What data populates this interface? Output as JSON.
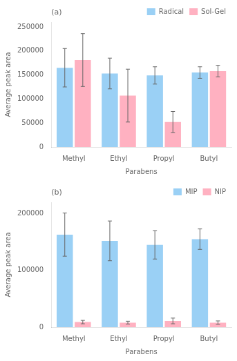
{
  "chart_data": [
    {
      "type": "bar",
      "annotation": "(a)",
      "categories": [
        "Methyl",
        "Ethyl",
        "Propyl",
        "Butyl"
      ],
      "series": [
        {
          "name": "Radical",
          "values": [
            165000,
            153000,
            149000,
            155000
          ],
          "errors": [
            40000,
            32000,
            18000,
            12000
          ]
        },
        {
          "name": "Sol-Gel",
          "values": [
            181000,
            107000,
            52000,
            158000
          ],
          "errors": [
            55000,
            55000,
            22000,
            12000
          ]
        }
      ],
      "xlabel": "Parabens",
      "ylabel": "Average peak area",
      "ylim": [
        0,
        260000
      ],
      "yticks": [
        0,
        50000,
        100000,
        150000,
        200000,
        250000
      ],
      "grid": false,
      "legend": "upper right"
    },
    {
      "type": "bar",
      "annotation": "(b)",
      "categories": [
        "Methyl",
        "Ethyl",
        "Propyl",
        "Butyl"
      ],
      "series": [
        {
          "name": "MIP",
          "values": [
            163000,
            152000,
            145000,
            155000
          ],
          "errors": [
            38000,
            35000,
            25000,
            18000
          ]
        },
        {
          "name": "NIP",
          "values": [
            9000,
            8000,
            11000,
            8000
          ],
          "errors": [
            3000,
            2500,
            5000,
            3000
          ]
        }
      ],
      "xlabel": "Parabens",
      "ylabel": "Average peak area",
      "ylim": [
        0,
        220000
      ],
      "yticks": [
        0,
        100000,
        200000
      ],
      "grid": false,
      "legend": "upper right"
    }
  ]
}
